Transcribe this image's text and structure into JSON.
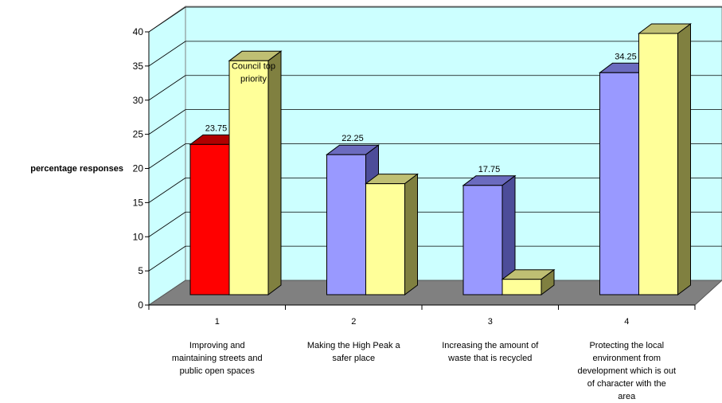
{
  "chart_data": {
    "type": "bar",
    "title": "",
    "ylabel": "percentage responses",
    "xlabel": "",
    "ylim": [
      0,
      40
    ],
    "yticks": [
      0,
      5,
      10,
      15,
      20,
      25,
      30,
      35,
      40
    ],
    "grid": true,
    "legend": "none",
    "three_d": true,
    "categories": [
      "1",
      "2",
      "3",
      "4"
    ],
    "category_descriptions": [
      [
        "Improving and",
        "maintaining streets and",
        "public open spaces"
      ],
      [
        "Making the High Peak a",
        "safer place"
      ],
      [
        "Increasing the amount of",
        "waste that is recycled"
      ],
      [
        "Protecting the local",
        "environment from",
        "development which is out",
        "of character with the",
        "area"
      ]
    ],
    "series": [
      {
        "values": [
          23.75,
          22.25,
          17.75,
          34.25
        ],
        "data_labels": [
          "23.75",
          "22.25",
          "17.75",
          "34.25"
        ]
      },
      {
        "values": [
          36,
          18,
          4,
          40
        ]
      }
    ],
    "annotation": {
      "text": [
        "Council top",
        "priority"
      ]
    },
    "colors": {
      "series1": "#9999ff",
      "series1_highlight": "#ff0000",
      "series2": "#ffff99",
      "wall": "#ccffff",
      "floor": "#808080"
    }
  }
}
